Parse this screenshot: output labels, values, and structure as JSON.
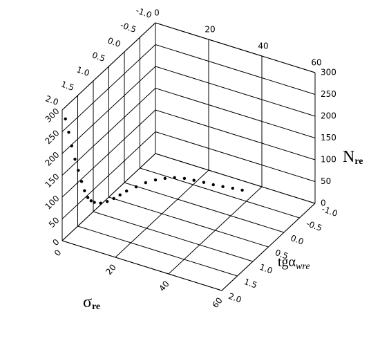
{
  "chart_data": {
    "type": "scatter3d",
    "xlabel": [
      "σ",
      "re"
    ],
    "ylabel": [
      "tgα",
      "wre"
    ],
    "zlabel": [
      "N",
      "re"
    ],
    "xlim": [
      0,
      60
    ],
    "xticks": [
      0,
      20,
      40,
      60
    ],
    "ylim": [
      -1,
      2
    ],
    "yticks": [
      {
        "value": -1,
        "label": "-1.0"
      },
      {
        "value": -0.5,
        "label": "-0.5"
      },
      {
        "value": 0,
        "label": "0.0"
      },
      {
        "value": 0.5,
        "label": "0.5"
      },
      {
        "value": 1,
        "label": "1.0"
      },
      {
        "value": 1.5,
        "label": "1.5"
      },
      {
        "value": 2,
        "label": "2.0"
      }
    ],
    "zlim": [
      0,
      300
    ],
    "zticks": [
      0,
      50,
      100,
      150,
      200,
      250,
      300
    ],
    "grid": true,
    "color": "#000000",
    "x": [
      1,
      2,
      3,
      4,
      5,
      6,
      7,
      8,
      9,
      10,
      12,
      14,
      16,
      18,
      20,
      23,
      26,
      29,
      32,
      35,
      38,
      41,
      44,
      47,
      50,
      53,
      56
    ],
    "y": [
      1.98,
      1.96,
      1.95,
      1.93,
      1.91,
      1.89,
      1.88,
      1.86,
      1.84,
      1.82,
      1.79,
      1.75,
      1.71,
      1.68,
      1.64,
      1.59,
      1.54,
      1.48,
      1.43,
      1.38,
      1.32,
      1.27,
      1.21,
      1.16,
      1.11,
      1.05,
      1.0
    ],
    "z": [
      280,
      250,
      220,
      190,
      165,
      140,
      120,
      105,
      98,
      95,
      95,
      100,
      108,
      118,
      128,
      140,
      152,
      160,
      166,
      170,
      170,
      168,
      165,
      162,
      160,
      158,
      156
    ]
  }
}
